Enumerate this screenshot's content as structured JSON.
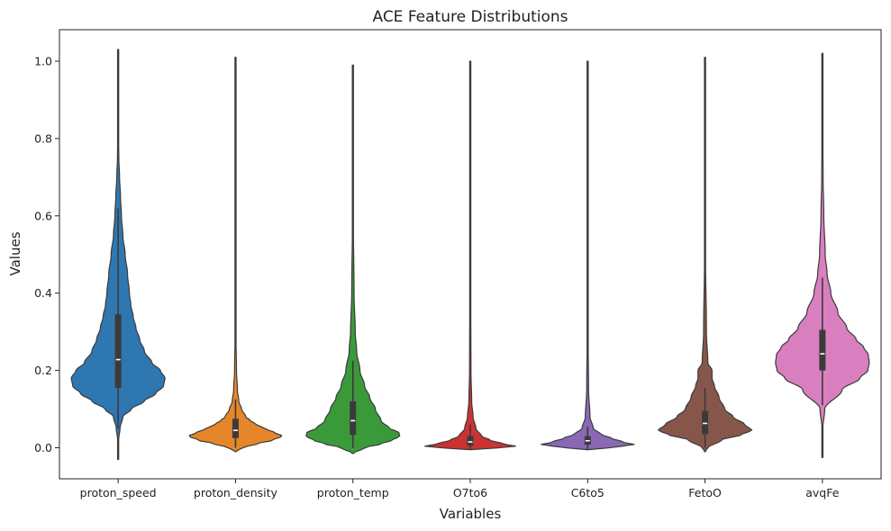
{
  "chart_data": {
    "type": "violin",
    "title": "ACE Feature Distributions",
    "xlabel": "Variables",
    "ylabel": "Values",
    "ylim": [
      -0.08,
      1.08
    ],
    "yticks": [
      "0.0",
      "0.2",
      "0.4",
      "0.6",
      "0.8",
      "1.0"
    ],
    "grid": false,
    "categories": [
      "proton_speed",
      "proton_density",
      "proton_temp",
      "O7to6",
      "C6to5",
      "FetoO",
      "avqFe"
    ],
    "series": [
      {
        "name": "proton_speed",
        "color": "#2f77b1",
        "min": -0.03,
        "max": 1.03,
        "q1": 0.155,
        "median": 0.228,
        "q3": 0.345,
        "whisker_low": 0.05,
        "whisker_high": 0.62,
        "profile": [
          [
            -0.03,
            0.0
          ],
          [
            0.0,
            0.0
          ],
          [
            0.02,
            0.01
          ],
          [
            0.05,
            0.04
          ],
          [
            0.08,
            0.1
          ],
          [
            0.1,
            0.28
          ],
          [
            0.12,
            0.55
          ],
          [
            0.14,
            0.8
          ],
          [
            0.16,
            0.97
          ],
          [
            0.18,
            1.0
          ],
          [
            0.2,
            0.9
          ],
          [
            0.22,
            0.72
          ],
          [
            0.25,
            0.56
          ],
          [
            0.28,
            0.46
          ],
          [
            0.31,
            0.38
          ],
          [
            0.34,
            0.32
          ],
          [
            0.37,
            0.27
          ],
          [
            0.4,
            0.24
          ],
          [
            0.45,
            0.2
          ],
          [
            0.5,
            0.15
          ],
          [
            0.55,
            0.1
          ],
          [
            0.6,
            0.07
          ],
          [
            0.65,
            0.05
          ],
          [
            0.7,
            0.03
          ],
          [
            0.75,
            0.015
          ],
          [
            0.8,
            0.008
          ],
          [
            0.9,
            0.004
          ],
          [
            1.03,
            0.0
          ]
        ]
      },
      {
        "name": "proton_density",
        "color": "#e6862a",
        "min": -0.01,
        "max": 1.01,
        "q1": 0.025,
        "median": 0.045,
        "q3": 0.075,
        "whisker_low": 0.0,
        "whisker_high": 0.125,
        "profile": [
          [
            -0.01,
            0.0
          ],
          [
            0.0,
            0.15
          ],
          [
            0.01,
            0.45
          ],
          [
            0.02,
            0.8
          ],
          [
            0.03,
            1.0
          ],
          [
            0.04,
            0.82
          ],
          [
            0.05,
            0.62
          ],
          [
            0.06,
            0.45
          ],
          [
            0.07,
            0.32
          ],
          [
            0.08,
            0.22
          ],
          [
            0.1,
            0.13
          ],
          [
            0.12,
            0.07
          ],
          [
            0.15,
            0.04
          ],
          [
            0.2,
            0.02
          ],
          [
            0.3,
            0.008
          ],
          [
            0.5,
            0.004
          ],
          [
            0.8,
            0.003
          ],
          [
            1.01,
            0.0
          ]
        ]
      },
      {
        "name": "proton_temp",
        "color": "#3a9a3a",
        "min": -0.015,
        "max": 0.99,
        "q1": 0.033,
        "median": 0.07,
        "q3": 0.12,
        "whisker_low": 0.0,
        "whisker_high": 0.225,
        "profile": [
          [
            -0.015,
            0.0
          ],
          [
            0.0,
            0.25
          ],
          [
            0.01,
            0.6
          ],
          [
            0.02,
            0.85
          ],
          [
            0.03,
            1.0
          ],
          [
            0.04,
            0.98
          ],
          [
            0.05,
            0.78
          ],
          [
            0.07,
            0.6
          ],
          [
            0.1,
            0.48
          ],
          [
            0.13,
            0.36
          ],
          [
            0.16,
            0.25
          ],
          [
            0.2,
            0.15
          ],
          [
            0.25,
            0.08
          ],
          [
            0.3,
            0.05
          ],
          [
            0.4,
            0.025
          ],
          [
            0.6,
            0.008
          ],
          [
            0.8,
            0.004
          ],
          [
            0.99,
            0.0
          ]
        ]
      },
      {
        "name": "O7to6",
        "color": "#cc3232",
        "min": -0.005,
        "max": 1.0,
        "q1": 0.005,
        "median": 0.015,
        "q3": 0.03,
        "whisker_low": -0.005,
        "whisker_high": 0.06,
        "profile": [
          [
            -0.005,
            0.0
          ],
          [
            0.0,
            0.6
          ],
          [
            0.005,
            1.0
          ],
          [
            0.01,
            0.7
          ],
          [
            0.02,
            0.42
          ],
          [
            0.03,
            0.24
          ],
          [
            0.05,
            0.12
          ],
          [
            0.08,
            0.06
          ],
          [
            0.12,
            0.03
          ],
          [
            0.2,
            0.015
          ],
          [
            0.5,
            0.006
          ],
          [
            1.0,
            0.0
          ]
        ]
      },
      {
        "name": "C6to5",
        "color": "#8a68b5",
        "min": -0.005,
        "max": 1.0,
        "q1": 0.008,
        "median": 0.018,
        "q3": 0.03,
        "whisker_low": -0.005,
        "whisker_high": 0.055,
        "profile": [
          [
            -0.005,
            0.0
          ],
          [
            0.0,
            0.45
          ],
          [
            0.008,
            1.0
          ],
          [
            0.015,
            0.75
          ],
          [
            0.025,
            0.5
          ],
          [
            0.035,
            0.28
          ],
          [
            0.05,
            0.12
          ],
          [
            0.08,
            0.05
          ],
          [
            0.15,
            0.02
          ],
          [
            0.3,
            0.008
          ],
          [
            1.0,
            0.0
          ]
        ]
      },
      {
        "name": "FetoO",
        "color": "#87564a",
        "min": -0.01,
        "max": 1.01,
        "q1": 0.035,
        "median": 0.063,
        "q3": 0.095,
        "whisker_low": 0.0,
        "whisker_high": 0.155,
        "profile": [
          [
            -0.01,
            0.0
          ],
          [
            0.0,
            0.06
          ],
          [
            0.02,
            0.35
          ],
          [
            0.035,
            0.8
          ],
          [
            0.045,
            1.0
          ],
          [
            0.06,
            0.85
          ],
          [
            0.08,
            0.6
          ],
          [
            0.1,
            0.42
          ],
          [
            0.13,
            0.3
          ],
          [
            0.16,
            0.2
          ],
          [
            0.18,
            0.15
          ],
          [
            0.2,
            0.15
          ],
          [
            0.22,
            0.06
          ],
          [
            0.3,
            0.03
          ],
          [
            0.5,
            0.01
          ],
          [
            0.8,
            0.005
          ],
          [
            1.01,
            0.0
          ]
        ]
      },
      {
        "name": "avqFe",
        "color": "#d97fc0",
        "min": -0.025,
        "max": 1.02,
        "q1": 0.2,
        "median": 0.243,
        "q3": 0.305,
        "whisker_low": 0.11,
        "whisker_high": 0.44,
        "profile": [
          [
            -0.025,
            0.0
          ],
          [
            0.05,
            0.01
          ],
          [
            0.1,
            0.05
          ],
          [
            0.15,
            0.42
          ],
          [
            0.18,
            0.8
          ],
          [
            0.2,
            0.97
          ],
          [
            0.22,
            1.0
          ],
          [
            0.24,
            0.98
          ],
          [
            0.26,
            0.88
          ],
          [
            0.28,
            0.72
          ],
          [
            0.31,
            0.52
          ],
          [
            0.35,
            0.33
          ],
          [
            0.4,
            0.18
          ],
          [
            0.45,
            0.1
          ],
          [
            0.5,
            0.06
          ],
          [
            0.6,
            0.03
          ],
          [
            0.7,
            0.015
          ],
          [
            0.8,
            0.008
          ],
          [
            1.02,
            0.0
          ]
        ]
      }
    ]
  }
}
